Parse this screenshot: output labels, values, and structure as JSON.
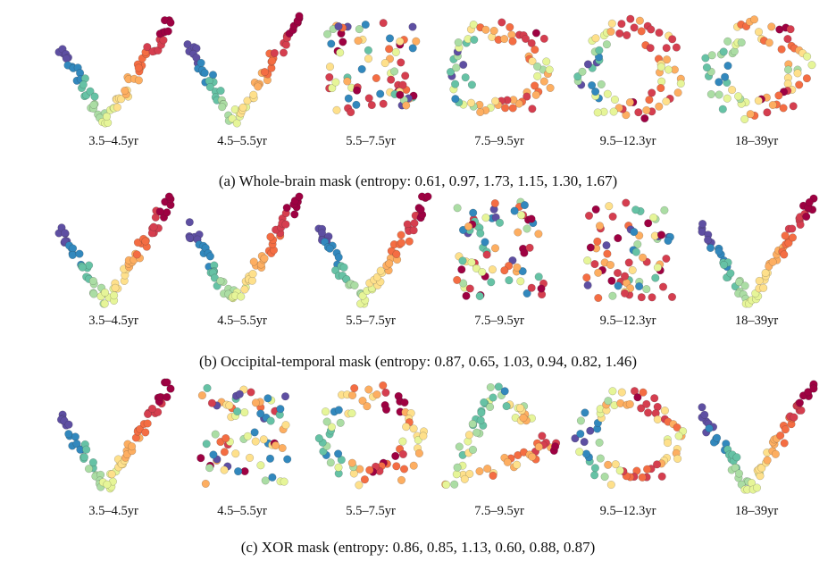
{
  "figure": {
    "rows": [
      {
        "caption": "(a) Whole-brain mask (entropy: 0.61, 0.97, 1.73, 1.15, 1.30, 1.67)",
        "panels": [
          {
            "label": "3.5–4.5yr",
            "shape": "v"
          },
          {
            "label": "4.5–5.5yr",
            "shape": "v"
          },
          {
            "label": "5.5–7.5yr",
            "shape": "blob"
          },
          {
            "label": "7.5–9.5yr",
            "shape": "ring"
          },
          {
            "label": "9.5–12.3yr",
            "shape": "ring"
          },
          {
            "label": "18–39yr",
            "shape": "ring"
          }
        ]
      },
      {
        "caption": "(b) Occipital-temporal mask (entropy: 0.87, 0.65, 1.03, 0.94, 0.82, 1.46)",
        "panels": [
          {
            "label": "3.5–4.5yr",
            "shape": "v"
          },
          {
            "label": "4.5–5.5yr",
            "shape": "v"
          },
          {
            "label": "5.5–7.5yr",
            "shape": "v"
          },
          {
            "label": "7.5–9.5yr",
            "shape": "blob"
          },
          {
            "label": "9.5–12.3yr",
            "shape": "blob"
          },
          {
            "label": "18–39yr",
            "shape": "v"
          }
        ]
      },
      {
        "caption": "(c) XOR mask (entropy: 0.86, 0.85, 1.13, 0.60, 0.88, 0.87)",
        "panels": [
          {
            "label": "3.5–4.5yr",
            "shape": "v"
          },
          {
            "label": "4.5–5.5yr",
            "shape": "blob"
          },
          {
            "label": "5.5–7.5yr",
            "shape": "ring"
          },
          {
            "label": "7.5–9.5yr",
            "shape": "triangle"
          },
          {
            "label": "9.5–12.3yr",
            "shape": "ring"
          },
          {
            "label": "18–39yr",
            "shape": "v"
          }
        ]
      }
    ],
    "colormap": [
      "#5e4fa2",
      "#3288bd",
      "#66c2a5",
      "#abdda4",
      "#e6f598",
      "#fee08b",
      "#fdae61",
      "#f46d43",
      "#d53e4f",
      "#9e0142"
    ]
  }
}
